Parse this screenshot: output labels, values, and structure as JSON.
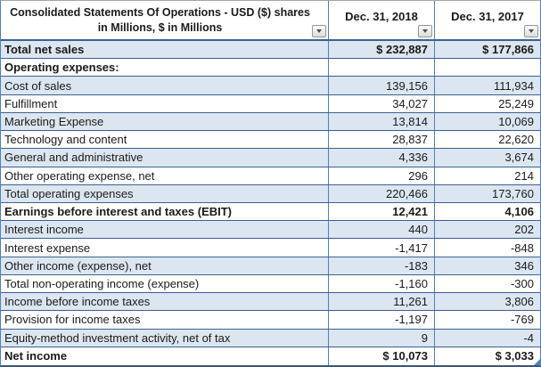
{
  "table": {
    "header": {
      "title_line1": "Consolidated Statements Of Operations - USD ($) shares",
      "title_line2": "in Millions, $ in Millions",
      "col_2018": "Dec. 31, 2018",
      "col_2017": "Dec. 31, 2017"
    },
    "rows": [
      {
        "label": "Total net sales",
        "v2018": "$ 232,887",
        "v2017": "$ 177,866",
        "bold": true
      },
      {
        "label": "Operating expenses:",
        "v2018": "",
        "v2017": "",
        "bold": true
      },
      {
        "label": "Cost of sales",
        "v2018": "139,156",
        "v2017": "111,934",
        "bold": false
      },
      {
        "label": "Fulfillment",
        "v2018": "34,027",
        "v2017": "25,249",
        "bold": false
      },
      {
        "label": "Marketing Expense",
        "v2018": "13,814",
        "v2017": "10,069",
        "bold": false
      },
      {
        "label": "Technology and content",
        "v2018": "28,837",
        "v2017": "22,620",
        "bold": false
      },
      {
        "label": "General and administrative",
        "v2018": "4,336",
        "v2017": "3,674",
        "bold": false
      },
      {
        "label": "Other operating expense, net",
        "v2018": "296",
        "v2017": "214",
        "bold": false
      },
      {
        "label": "Total operating expenses",
        "v2018": "220,466",
        "v2017": "173,760",
        "bold": false
      },
      {
        "label": "Earnings before interest and taxes (EBIT)",
        "v2018": "12,421",
        "v2017": "4,106",
        "bold": true
      },
      {
        "label": "Interest income",
        "v2018": "440",
        "v2017": "202",
        "bold": false
      },
      {
        "label": "Interest expense",
        "v2018": "-1,417",
        "v2017": "-848",
        "bold": false
      },
      {
        "label": "Other income (expense), net",
        "v2018": "-183",
        "v2017": "346",
        "bold": false
      },
      {
        "label": "Total non-operating income (expense)",
        "v2018": "-1,160",
        "v2017": "-300",
        "bold": false
      },
      {
        "label": "Income before income taxes",
        "v2018": "11,261",
        "v2017": "3,806",
        "bold": false
      },
      {
        "label": "Provision for income taxes",
        "v2018": "-1,197",
        "v2017": "-769",
        "bold": false
      },
      {
        "label": "Equity-method investment activity, net of tax",
        "v2018": "9",
        "v2017": "-4",
        "bold": false
      },
      {
        "label": "Net income",
        "v2018": "$ 10,073",
        "v2017": "$ 3,033",
        "bold": true
      }
    ],
    "icons": {
      "filter_dropdown": "chevron-down",
      "resize_handle": "corner-triangle"
    },
    "colors": {
      "banded_row_fill": "#dce6f1",
      "row_border": "#3a618f",
      "column_border": "#4f81bd",
      "header_top_border": "#a6a6a6",
      "text": "#1a1a1a",
      "resize_handle": "#4f81bd"
    }
  }
}
